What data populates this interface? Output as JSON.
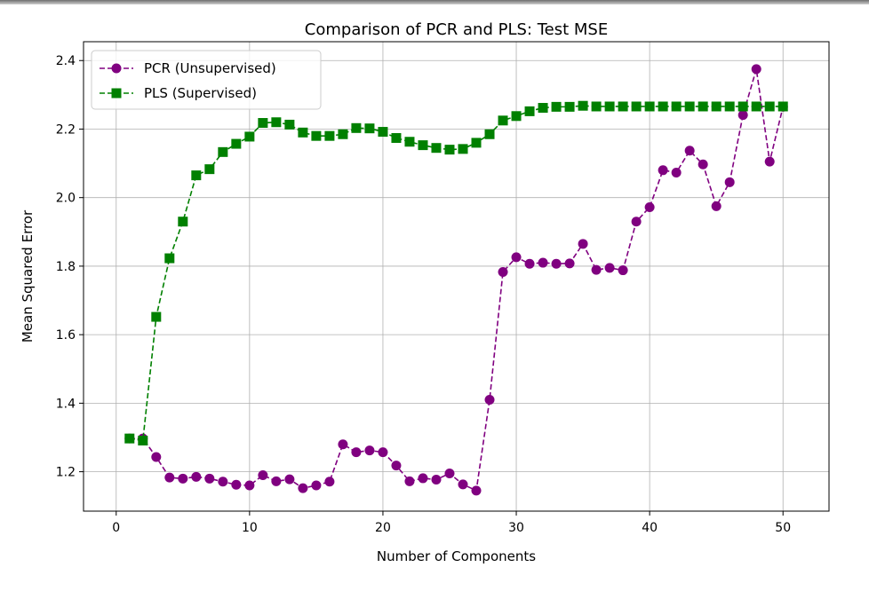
{
  "chart_data": {
    "type": "line",
    "title": "Comparison of PCR and PLS: Test MSE",
    "xlabel": "Number of Components",
    "ylabel": "Mean Squared Error",
    "xlim": [
      -2.45,
      53.45
    ],
    "ylim": [
      1.085,
      2.455
    ],
    "xticks": [
      0,
      10,
      20,
      30,
      40,
      50
    ],
    "xtick_labels": [
      "0",
      "10",
      "20",
      "30",
      "40",
      "50"
    ],
    "yticks": [
      1.2,
      1.4,
      1.6,
      1.8,
      2.0,
      2.2,
      2.4
    ],
    "ytick_labels": [
      "1.2",
      "1.4",
      "1.6",
      "1.8",
      "2.0",
      "2.2",
      "2.4"
    ],
    "grid": true,
    "legend_position": "top-left",
    "x": [
      1,
      2,
      3,
      4,
      5,
      6,
      7,
      8,
      9,
      10,
      11,
      12,
      13,
      14,
      15,
      16,
      17,
      18,
      19,
      20,
      21,
      22,
      23,
      24,
      25,
      26,
      27,
      28,
      29,
      30,
      31,
      32,
      33,
      34,
      35,
      36,
      37,
      38,
      39,
      40,
      41,
      42,
      43,
      44,
      45,
      46,
      47,
      48,
      49,
      50
    ],
    "series": [
      {
        "name": "PCR (Unsupervised)",
        "color": "#800080",
        "marker": "circle",
        "linestyle": "dashed",
        "values": [
          1.297,
          1.297,
          1.243,
          1.183,
          1.18,
          1.185,
          1.18,
          1.171,
          1.162,
          1.16,
          1.19,
          1.172,
          1.178,
          1.152,
          1.16,
          1.171,
          1.28,
          1.257,
          1.262,
          1.257,
          1.218,
          1.172,
          1.181,
          1.177,
          1.195,
          1.163,
          1.145,
          1.41,
          1.783,
          1.826,
          1.807,
          1.81,
          1.807,
          1.808,
          1.865,
          1.789,
          1.795,
          1.788,
          1.93,
          1.972,
          2.08,
          2.073,
          2.137,
          2.097,
          1.975,
          2.045,
          2.241,
          2.375,
          2.105,
          2.265
        ]
      },
      {
        "name": "PLS (Supervised)",
        "color": "#008000",
        "marker": "square",
        "linestyle": "dashed",
        "values": [
          1.297,
          1.291,
          1.652,
          1.823,
          1.93,
          2.065,
          2.083,
          2.133,
          2.157,
          2.178,
          2.218,
          2.22,
          2.213,
          2.19,
          2.18,
          2.18,
          2.185,
          2.203,
          2.202,
          2.192,
          2.174,
          2.163,
          2.153,
          2.145,
          2.14,
          2.142,
          2.16,
          2.185,
          2.225,
          2.238,
          2.252,
          2.262,
          2.265,
          2.265,
          2.268,
          2.266,
          2.266,
          2.266,
          2.266,
          2.266,
          2.266,
          2.266,
          2.266,
          2.266,
          2.266,
          2.266,
          2.266,
          2.266,
          2.266,
          2.266
        ]
      }
    ]
  }
}
